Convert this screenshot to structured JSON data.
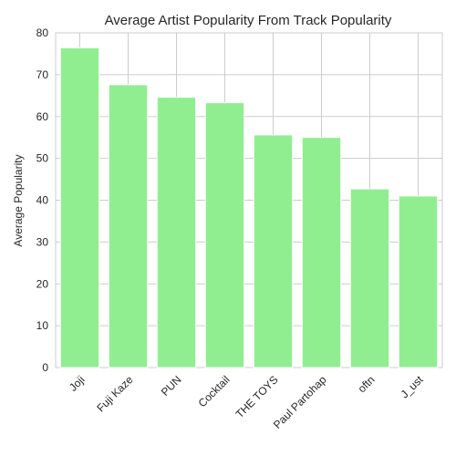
{
  "chart_data": {
    "type": "bar",
    "title": "Average Artist Popularity From Track Popularity",
    "xlabel": "",
    "ylabel": "Average Popularity",
    "categories": [
      "Joji",
      "Fuji Kaze",
      "PUN",
      "Cocktail",
      "THE TOYS",
      "Paul Partohap",
      "oftn",
      "J_ust"
    ],
    "values": [
      76.4,
      67.6,
      64.6,
      63.3,
      55.6,
      55.0,
      42.7,
      41.0
    ],
    "ylim": [
      0,
      80
    ],
    "yticks": [
      0,
      10,
      20,
      30,
      40,
      50,
      60,
      70,
      80
    ],
    "grid": true,
    "bar_color": "#90ee90",
    "legend": "none"
  }
}
